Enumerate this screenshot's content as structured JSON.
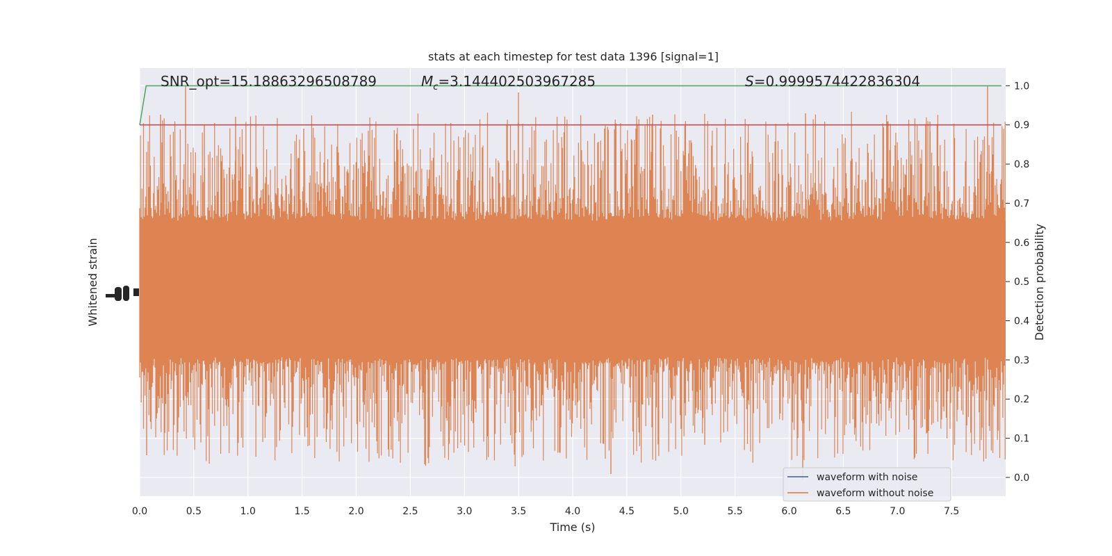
{
  "chart_data": {
    "type": "line",
    "title": "stats at each timestep for test data 1396 [signal=1]",
    "xlabel": "Time (s)",
    "ylabel_left": "Whitened strain",
    "ylabel_right": "Detection probability",
    "xlim": [
      0.0,
      8.0
    ],
    "ylim_right": [
      -0.048,
      1.045
    ],
    "x_ticks": [
      "0.0",
      "0.5",
      "1.0",
      "1.5",
      "2.0",
      "2.5",
      "3.0",
      "3.5",
      "4.0",
      "4.5",
      "5.0",
      "5.5",
      "6.0",
      "6.5",
      "7.0",
      "7.5"
    ],
    "x_tick_values": [
      0.0,
      0.5,
      1.0,
      1.5,
      2.0,
      2.5,
      3.0,
      3.5,
      4.0,
      4.5,
      5.0,
      5.5,
      6.0,
      6.5,
      7.0,
      7.5
    ],
    "y_right_ticks": [
      "0.0",
      "0.1",
      "0.2",
      "0.3",
      "0.4",
      "0.5",
      "0.6",
      "0.7",
      "0.8",
      "0.9",
      "1.0"
    ],
    "y_right_tick_values": [
      0.0,
      0.1,
      0.2,
      0.3,
      0.4,
      0.5,
      0.6,
      0.7,
      0.8,
      0.9,
      1.0
    ],
    "annotations": {
      "snr": "SNR_opt=15.18863296508789",
      "mc_symbol": "M",
      "mc_sub": "c",
      "mc_value": "=3.144402503967285",
      "s_symbol": "S",
      "s_value": "=0.9999574422836304"
    },
    "legend": {
      "placement": "lower right",
      "entries": [
        {
          "label": "waveform with noise",
          "color": "#4c72b0"
        },
        {
          "label": "waveform without noise",
          "color": "#dd8452"
        }
      ]
    },
    "series": [
      {
        "name": "waveform with noise",
        "color": "#4c72b0",
        "note_values": "whitened strain noise, hidden behind orange"
      },
      {
        "name": "waveform without noise",
        "color": "#dd8452"
      },
      {
        "color": "#55a868",
        "x": [
          0.0,
          0.06,
          7.96
        ],
        "y": [
          0.9,
          1.0,
          1.0
        ]
      },
      {
        "color": "#c44e52",
        "x": [
          0.0,
          7.96
        ],
        "y": [
          0.9,
          0.9
        ]
      }
    ],
    "grid": true,
    "background": "#eaeaf2"
  }
}
